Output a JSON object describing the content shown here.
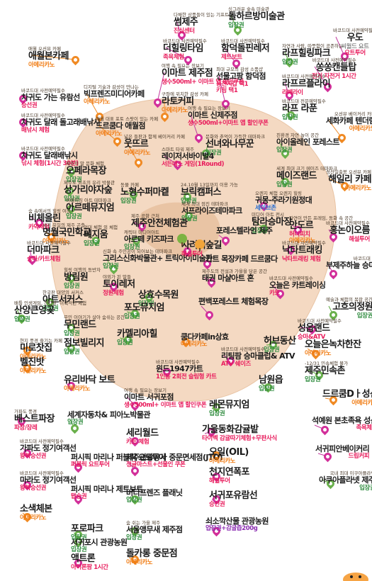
{
  "places": [
    {
      "id": "p1",
      "note": "다채한 상품들이 있는 기프트샵",
      "name": "썸제주",
      "tags": [
        {
          "t": "진심센터",
          "c": "t-red"
        }
      ],
      "dot": "pin"
    },
    {
      "id": "p2",
      "note": "싱그러운 숲속 미술관",
      "name": "돌하르방미술관",
      "tags": [
        {
          "t": "입장권",
          "c": "t-green"
        }
      ],
      "dot": "pin green"
    },
    {
      "id": "p3",
      "note": "바코드대 사전예약필수",
      "name": "우도",
      "tags": [
        {
          "t": "씨월드 요트",
          "c": "t-gray"
        },
        {
          "t": "요트투어",
          "c": "t-red"
        }
      ],
      "dot": "pin"
    },
    {
      "id": "p4",
      "note": "애월 오션뷰 카페",
      "name": "애월본카페",
      "tags": [
        {
          "t": "아메리카노",
          "c": "t-orange"
        }
      ],
      "dot": "pin orange"
    },
    {
      "id": "p5",
      "note": "바코드대 사전예약필수",
      "name": "더힐링타임",
      "tags": [
        {
          "t": "족욕체험",
          "c": "t-red"
        }
      ],
      "dot": "pin"
    },
    {
      "id": "p6",
      "note": "바코드대 사전예약필수",
      "name": "함덕돌핀레저",
      "tags": [
        {
          "t": "제트보트",
          "c": "t-red"
        }
      ],
      "dot": "pin"
    },
    {
      "id": "p7",
      "note": "자연과 사람, 따뜻함이 공존하는",
      "name": "라프힐링파크",
      "tags": [
        {
          "t": "입장권",
          "c": "t-green"
        }
      ],
      "dot": "pin green"
    },
    {
      "id": "p8",
      "note": "바코드대 사전예약필수",
      "name": "차귀도 가는 유람선",
      "tags": [
        {
          "t": "승선권",
          "c": "t-red"
        }
      ],
      "dot": "pin"
    },
    {
      "id": "p9",
      "note": "여행 속 필요는 장보기",
      "name": "이마트 제주점",
      "tags": [
        {
          "t": "생수500ml+ 이마트 앱 할인쿠폰",
          "c": "t-red"
        }
      ],
      "dot": "pin"
    },
    {
      "id": "p10",
      "note": "최대 규모의 감성 소품샵",
      "name": "선물고팡 함덕점",
      "tags": [
        {
          "t": "동전지갑 택1",
          "c": "t-red"
        },
        {
          "t": "키링 택1",
          "c": "t-red"
        }
      ],
      "dot": "pin"
    },
    {
      "id": "p11",
      "note": "바코드대 사전예약필수",
      "name": "쏭쏭캔들탑",
      "tags": [
        {
          "t": "전기 자전거 1시간",
          "c": "t-red"
        }
      ],
      "dot": "pin"
    },
    {
      "id": "p12",
      "note": "디지털 기술과 감성이 만나는",
      "name": "빅프렌즈미디어카페",
      "tags": [
        {
          "t": "아메리카노",
          "c": "t-orange"
        }
      ],
      "dot": "pin orange"
    },
    {
      "id": "p13",
      "note": "바코드대 사전예약필수",
      "name": "라프르플라이",
      "tags": [
        {
          "t": "라떼라이",
          "c": "t-red"
        }
      ],
      "dot": "pin"
    },
    {
      "id": "p14",
      "note": "바코드대 사전예약필수",
      "name": "차귀도 달래 돌고래배낚시",
      "tags": [
        {
          "t": "배낚시 체험",
          "c": "t-red"
        }
      ],
      "dot": "pin"
    },
    {
      "id": "p15",
      "note": "구좌에 위치한 감성 카페",
      "name": "라토커피",
      "tags": [
        {
          "t": "아메리카노",
          "c": "t-orange"
        }
      ],
      "dot": "pin orange"
    },
    {
      "id": "p16",
      "note": "바코드대 전문예약필수",
      "name": "라프 라푼",
      "tags": [
        {
          "t": "입장권",
          "c": "t-green"
        }
      ],
      "dot": "pin green"
    },
    {
      "id": "p17",
      "note": "애월 대표 포토 스팟이 있는 카페",
      "name": "드르쿰다 애월점",
      "tags": [
        {
          "t": "아메리카노",
          "c": "t-orange"
        }
      ],
      "dot": "pin orange"
    },
    {
      "id": "p18",
      "note": "여행 속 필요는 장보기",
      "name": "이마트 신제주점",
      "tags": [
        {
          "t": "생수500ml+이마트 앱 할인쿠폰",
          "c": "t-red"
        }
      ],
      "dot": "pin"
    },
    {
      "id": "p19",
      "note": "오션뷰 베이커리 카페",
      "name": "세화카페 텐더럼",
      "tags": [
        {
          "t": "아메리카노",
          "c": "t-orange"
        }
      ],
      "dot": "pin orange"
    },
    {
      "id": "p20",
      "note": "바코드대 사전예약필수",
      "name": "차귀도 달래배낚시",
      "tags": [
        {
          "t": "낚시 체험(1시간 30분)",
          "c": "t-red"
        }
      ],
      "dot": "pin"
    },
    {
      "id": "p21",
      "note": "넓은 들판과 함께 베이커리 카페",
      "name": "웃뜨르",
      "tags": [
        {
          "t": "아메리카노",
          "c": "t-orange"
        }
      ],
      "dot": "pin orange"
    },
    {
      "id": "p22",
      "note": "문화와 추억이 가득한 테마파크",
      "name": "선녀와나무꾼",
      "tags": [
        {
          "t": "입장권",
          "c": "t-green"
        }
      ],
      "dot": "pin green"
    },
    {
      "id": "p23",
      "note": "친환경 자연 놀이 공간",
      "name": "아이올레인 포레스트",
      "tags": [
        {
          "t": "입장권",
          "c": "t-green"
        }
      ],
      "dot": "pin green"
    },
    {
      "id": "p24",
      "note": "제주의 말 문화 체험",
      "name": "오페라목장",
      "tags": [
        {
          "t": "입장권",
          "c": "t-green"
        }
      ],
      "dot": "pin green"
    },
    {
      "id": "p25",
      "note": "스마트 타워 제주",
      "name": "레이저서바이벌4",
      "tags": [
        {
          "t": "서든데스 게임(1Round)",
          "c": "t-red"
        }
      ],
      "dot": "pin"
    },
    {
      "id": "p26",
      "note": "세계 최대 크기 메이즈 테마파크",
      "name": "메이즈랜드",
      "tags": [
        {
          "t": "입장권",
          "c": "t-green"
        }
      ],
      "dot": "pin green"
    },
    {
      "id": "p27",
      "note": "제주도 최초의 유리 박물관",
      "name": "상가리야자숲",
      "tags": [
        {
          "t": "입장권",
          "c": "t-green"
        }
      ],
      "dot": "pin green"
    },
    {
      "id": "p28",
      "note": "동물 카페",
      "name": "노형수퍼마켙",
      "tags": [
        {
          "t": "입장권",
          "c": "t-green"
        }
      ],
      "dot": "pin green"
    },
    {
      "id": "p29",
      "note": "성산일출봉 오션뷰 카페",
      "name": "해일리 카페",
      "tags": [
        {
          "t": "아메리카노",
          "c": "t-orange"
        }
      ],
      "dot": "pin orange"
    },
    {
      "id": "p30",
      "note": "24.10월 13일까지 이용 가능",
      "name": "브릭캠퍼스",
      "tags": [
        {
          "t": "입장권",
          "c": "t-green"
        }
      ],
      "dot": "pin green"
    },
    {
      "id": "p31",
      "note": "어메이징 아트 테마파크",
      "name": "아르떼뮤지엄",
      "tags": [
        {
          "t": "입장권",
          "c": "t-green"
        }
      ],
      "dot": "pin green"
    },
    {
      "id": "p32",
      "note": "숨 속에서의 힐링 여정",
      "name": "비체올린",
      "tags": [
        {
          "t": "카약체험",
          "c": "t-red"
        }
      ],
      "dot": "pin"
    },
    {
      "id": "p33",
      "note": "오렌지 체험 오렌지 힐링",
      "name": "귀몽-주라기원정대",
      "tags": [
        {
          "t": "세이브존",
          "c": "t-blue"
        }
      ],
      "dot": "pin"
    },
    {
      "id": "p34",
      "note": "세계 최대 점진 테마파크",
      "name": "서프라이즈테마파크",
      "tags": [
        {
          "t": "입장권",
          "c": "t-green"
        }
      ],
      "dot": "pin green"
    },
    {
      "id": "p35",
      "note": "세계 유일의 제주 곤충",
      "name": "명월국민학교",
      "tags": [
        {
          "t": "아메리카노",
          "c": "t-orange"
        }
      ],
      "dot": "pin orange"
    },
    {
      "id": "p36",
      "note": "미디어 아트 전시",
      "name": "탐라승마장",
      "tags": [
        {
          "t": "입장권",
          "c": "t-green"
        }
      ],
      "dot": "pin green"
    },
    {
      "id": "p37",
      "note": "자연이 만든 프레임, 동화 속 공간",
      "name": "안도르",
      "tags": [
        {
          "t": "허니피치",
          "c": "t-red"
        },
        {
          "t": "아메리카노",
          "c": "t-orange"
        }
      ],
      "dot": "pin"
    },
    {
      "id": "p38",
      "note": "제주 공항 근처",
      "name": "제주안전체험관",
      "tags": [],
      "dot": "pin"
    },
    {
      "id": "p39",
      "note": "바코드대 사전예약필수",
      "name": "홍논이오름",
      "tags": [
        {
          "t": "해설투어",
          "c": "t-red"
        }
      ],
      "dot": "pin"
    },
    {
      "id": "p40",
      "note": "엄대 체험 외 체험",
      "name": "테지움",
      "tags": [
        {
          "t": "입장권",
          "c": "t-green"
        }
      ],
      "dot": "pin green"
    },
    {
      "id": "p41",
      "note": "캐릭터 미디어아트",
      "name": "아르떼 키즈파크",
      "tags": [
        {
          "t": "입장권",
          "c": "t-green"
        }
      ],
      "dot": "pin green"
    },
    {
      "id": "p42",
      "note": "바코드대 사전예약필수",
      "name": "더마파크",
      "tags": [
        {
          "t": "승마/카트체험",
          "c": "t-red"
        }
      ],
      "dot": "pin"
    },
    {
      "id": "p43",
      "note": "",
      "name": "포레스텔라인 제주",
      "tags": [],
      "dot": "pin"
    },
    {
      "id": "p44",
      "note": "바코드대 사전예약필수",
      "name": "낙타트래킹",
      "tags": [
        {
          "t": "낙타트래킹 체험",
          "c": "t-red"
        }
      ],
      "dot": "pin"
    },
    {
      "id": "p45",
      "note": "신화 속 주인공이 되어보는 테마파크",
      "name": "그리스신화박물관+ 트릭아이미술관",
      "tags": [
        {
          "t": "입장권",
          "c": "t-green"
        }
      ],
      "dot": "pin green"
    },
    {
      "id": "p46",
      "note": "",
      "name": "사려니숲길",
      "tags": [
        {
          "t": "해설투어",
          "c": "t-red"
        }
      ],
      "dot": "pin"
    },
    {
      "id": "p47",
      "note": "힐링 여행의 동반자",
      "name": "방림원",
      "tags": [
        {
          "t": "입장권",
          "c": "t-green"
        }
      ],
      "dot": "pin green"
    },
    {
      "id": "p48",
      "note": "바코드대 사전예약필수",
      "name": "부제주하늘 승마&ATV",
      "tags": [
        {
          "t": "승마체험",
          "c": "t-red"
        }
      ],
      "dot": "pin"
    },
    {
      "id": "p49",
      "note": "",
      "name": "카트 목장카페 드르쿰다",
      "tags": [],
      "dot": "pin"
    },
    {
      "id": "p50",
      "note": "야외가 된 말들",
      "name": "토이레저",
      "tags": [
        {
          "t": "정원체험",
          "c": "t-red"
        }
      ],
      "dot": "pin"
    },
    {
      "id": "p51",
      "note": "제주도의 전설과 가을을 담은 공간",
      "name": "태권 마샬아트 혼",
      "tags": [],
      "dot": "pin"
    },
    {
      "id": "p52",
      "note": "",
      "name": "상효수목원",
      "tags": [
        {
          "t": "입장권",
          "c": "t-green"
        }
      ],
      "dot": "pin green"
    },
    {
      "id": "p53",
      "note": "한국판 대양의 서커스",
      "name": "아트서커스",
      "tags": [
        {
          "t": "관람권",
          "c": "t-green"
        }
      ],
      "dot": "pin green"
    },
    {
      "id": "p54",
      "note": "",
      "name": "포도뮤지엄",
      "tags": [
        {
          "t": "입장권",
          "c": "t-green"
        }
      ],
      "dot": "pin green"
    },
    {
      "id": "p55",
      "note": "배틀 인생게임, 잔디밭, 이색적인 체험",
      "name": "산양큰엉곶",
      "tags": [
        {
          "t": "입장권",
          "c": "t-green"
        }
      ],
      "dot": "pin green"
    },
    {
      "id": "p56",
      "note": "무민 이야기가 살아 숨쉬는 공간",
      "name": "무민랜드",
      "tags": [
        {
          "t": "입장권",
          "c": "t-green"
        }
      ],
      "dot": "pin green"
    },
    {
      "id": "p57",
      "note": "바코드대 사전예약필수",
      "name": "오늘은 카트레이싱",
      "tags": [
        {
          "t": "카트",
          "c": "t-red"
        }
      ],
      "dot": "pin"
    },
    {
      "id": "p58",
      "note": "",
      "name": "편백포레스트 체험목장",
      "tags": [],
      "dot": "pin"
    },
    {
      "id": "p59",
      "note": "예술과 체험의 복합 공간",
      "name": "고흐의정원",
      "tags": [
        {
          "t": "입장권",
          "c": "t-green"
        }
      ],
      "dot": "pin green"
    },
    {
      "id": "p60",
      "note": "현지 풍경 즐기는 카페",
      "name": "미로찻집",
      "tags": [
        {
          "t": "아메리카노",
          "c": "t-orange"
        }
      ],
      "dot": "pin orange"
    },
    {
      "id": "p61",
      "note": "",
      "name": "카멜리아힐",
      "tags": [
        {
          "t": "입장권",
          "c": "t-green"
        }
      ],
      "dot": "pin green"
    },
    {
      "id": "p62",
      "note": "",
      "name": "쿰다카페in상효",
      "tags": [
        {
          "t": "아메리카노",
          "c": "t-orange"
        }
      ],
      "dot": "pin orange"
    },
    {
      "id": "p63",
      "note": "바코드대 사전예약필수",
      "name": "성읍랜드",
      "tags": [
        {
          "t": "승마&ATV",
          "c": "t-red"
        }
      ],
      "dot": "pin"
    },
    {
      "id": "p64",
      "note": "",
      "name": "점보빌리지",
      "tags": [
        {
          "t": "입장권",
          "c": "t-green"
        }
      ],
      "dot": "pin green"
    },
    {
      "id": "p65",
      "note": "",
      "name": "허브동산",
      "tags": [
        {
          "t": "입장권",
          "c": "t-green"
        }
      ],
      "dot": "pin green"
    },
    {
      "id": "p66",
      "note": "",
      "name": "오늘은녹차한잔",
      "tags": [
        {
          "t": "아메리카노",
          "c": "t-orange"
        }
      ],
      "dot": "pin orange"
    },
    {
      "id": "p67",
      "note": "",
      "name": "벨진밧",
      "tags": [
        {
          "t": "아메리카노",
          "c": "t-orange"
        }
      ],
      "dot": "pin orange"
    },
    {
      "id": "p68",
      "note": "바코드대 사전예약필수",
      "name": "리팅팜 승마클럽& ATV",
      "tags": [
        {
          "t": "ATV 쉐이즈",
          "c": "t-red"
        }
      ],
      "dot": "pin"
    },
    {
      "id": "p69",
      "note": "-12/31 민속체험 불가",
      "name": "제주민속촌",
      "tags": [
        {
          "t": "입장권",
          "c": "t-green"
        }
      ],
      "dot": "pin green"
    },
    {
      "id": "p70",
      "note": "바코드대 사전예약필수",
      "name": "윈드1947카트",
      "tags": [
        {
          "t": "1인용 2회전 슬림형 카트",
          "c": "t-red"
        }
      ],
      "dot": "pin"
    },
    {
      "id": "p71",
      "note": "",
      "name": "유리바닥 보트",
      "tags": [
        {
          "t": "아메리카노",
          "c": "t-orange"
        }
      ],
      "dot": "pin"
    },
    {
      "id": "p72",
      "note": "",
      "name": "남원읍",
      "tags": [
        {
          "t": "입장권",
          "c": "t-green"
        }
      ],
      "dot": "pin green"
    },
    {
      "id": "p73",
      "note": "",
      "name": "드르쿰Dㅏ성산",
      "tags": [
        {
          "t": "아메리카노",
          "c": "t-orange"
        }
      ],
      "dot": "pin orange"
    },
    {
      "id": "p74",
      "note": "여행 속 필요는 장보기",
      "name": "이마트 서귀포점",
      "tags": [
        {
          "t": "생수500ml+ 이마트 앱 할인쿠폰",
          "c": "t-red"
        }
      ],
      "dot": "pin"
    },
    {
      "id": "p75",
      "note": "",
      "name": "레몬뮤지엄",
      "tags": [
        {
          "t": "입장권",
          "c": "t-green"
        }
      ],
      "dot": "pin green"
    },
    {
      "id": "p76",
      "note": "가파도 풍경",
      "name": "베스트파장",
      "tags": [
        {
          "t": "파장/장레",
          "c": "t-red"
        }
      ],
      "dot": "pin"
    },
    {
      "id": "p77",
      "note": "",
      "name": "세계자동차& 피아노박물관",
      "tags": [
        {
          "t": "입장권",
          "c": "t-green"
        }
      ],
      "dot": "pin green"
    },
    {
      "id": "p78",
      "note": "",
      "name": "세리월드",
      "tags": [
        {
          "t": "카트 체험",
          "c": "t-red"
        }
      ],
      "dot": "pin"
    },
    {
      "id": "p79",
      "note": "",
      "name": "가을동화감귤밭",
      "tags": [
        {
          "t": "타이벡 감귤따기체험+무판사식",
          "c": "t-red"
        }
      ],
      "dot": "pin"
    },
    {
      "id": "p80",
      "note": "",
      "name": "석예원 본초족욕 성산",
      "tags": [
        {
          "t": "족욕체험",
          "c": "t-red"
        }
      ],
      "dot": "pin"
    },
    {
      "id": "p81",
      "note": "바코드대 사전예약필수",
      "name": "가파도 정기여객선",
      "tags": [
        {
          "t": "왕복승선권",
          "c": "t-red"
        }
      ],
      "dot": "pin"
    },
    {
      "id": "p82",
      "note": "",
      "name": "퍼시픽 마리나 퍼블릭 요트투어",
      "tags": [
        {
          "t": "퍼블릭 요트투어",
          "c": "t-red"
        }
      ],
      "dot": "pin"
    },
    {
      "id": "p83",
      "note": "",
      "name": "제주관광공사 중문면세점(JTO)",
      "tags": [
        {
          "t": "정글마스트+선물인 쿠폰",
          "c": "t-red"
        }
      ],
      "dot": "pin"
    },
    {
      "id": "p84",
      "note": "",
      "name": "오일(OIL)",
      "tags": [
        {
          "t": "아메리카노",
          "c": "t-orange"
        }
      ],
      "dot": "pin orange"
    },
    {
      "id": "p85",
      "note": "",
      "name": "서귀피안베이커리",
      "tags": [
        {
          "t": "드립커피",
          "c": "t-red"
        }
      ],
      "dot": "pin"
    },
    {
      "id": "p86",
      "note": "바코드대 사전예약필수",
      "name": "마라도 정기여객선",
      "tags": [
        {
          "t": "왕복승선권",
          "c": "t-red"
        }
      ],
      "dot": "pin"
    },
    {
      "id": "p87",
      "note": "",
      "name": "천지연폭포",
      "tags": [
        {
          "t": "해설투어",
          "c": "t-red"
        }
      ],
      "dot": "pin"
    },
    {
      "id": "p88",
      "note": "",
      "name": "버디프렌즈 플래닛",
      "tags": [
        {
          "t": "입장권",
          "c": "t-green"
        }
      ],
      "dot": "pin green"
    },
    {
      "id": "p89",
      "note": "국내 최대 이쿠아플라넷",
      "name": "아쿠아플라넷 제주",
      "tags": [
        {
          "t": "입장권",
          "c": "t-green"
        }
      ],
      "dot": "pin green"
    },
    {
      "id": "p90",
      "note": "",
      "name": "퍼시픽 마리나 제트보트",
      "tags": [
        {
          "t": "탑승권",
          "c": "t-red"
        }
      ],
      "dot": "pin"
    },
    {
      "id": "p91",
      "note": "",
      "name": "서귀포유람선",
      "tags": [
        {
          "t": "승선권",
          "c": "t-red"
        }
      ],
      "dot": "pin"
    },
    {
      "id": "p92",
      "note": "",
      "name": "소색체본",
      "tags": [
        {
          "t": "아메리카노",
          "c": "t-orange"
        }
      ],
      "dot": "pin orange"
    },
    {
      "id": "p93",
      "note": "",
      "name": "포로파크",
      "tags": [
        {
          "t": "입장권",
          "c": "t-green"
        }
      ],
      "dot": "pin green"
    },
    {
      "id": "p94",
      "note": "",
      "name": "서귀포시 관광농원",
      "tags": [
        {
          "t": "입장권",
          "c": "t-green"
        }
      ],
      "dot": "pin green"
    },
    {
      "id": "p95",
      "note": "숨 쉬는 가을 제주",
      "name": "서울앵무새 제주점",
      "tags": [
        {
          "t": "입장권",
          "c": "t-green"
        }
      ],
      "dot": "pin green"
    },
    {
      "id": "p96",
      "note": "",
      "name": "쇠소깍산물 관광농원",
      "tags": [
        {
          "t": "입장권+감귤즙200g",
          "c": "t-purple"
        }
      ],
      "dot": "pin"
    },
    {
      "id": "p97",
      "note": "",
      "name": "액트론",
      "tags": [
        {
          "t": "아이론팜 1시간",
          "c": "t-red"
        }
      ],
      "dot": "pin"
    },
    {
      "id": "p98",
      "note": "",
      "name": "돌카롱 중문점",
      "tags": [
        {
          "t": "아메리카노",
          "c": "t-orange"
        }
      ],
      "dot": "pin orange"
    }
  ]
}
